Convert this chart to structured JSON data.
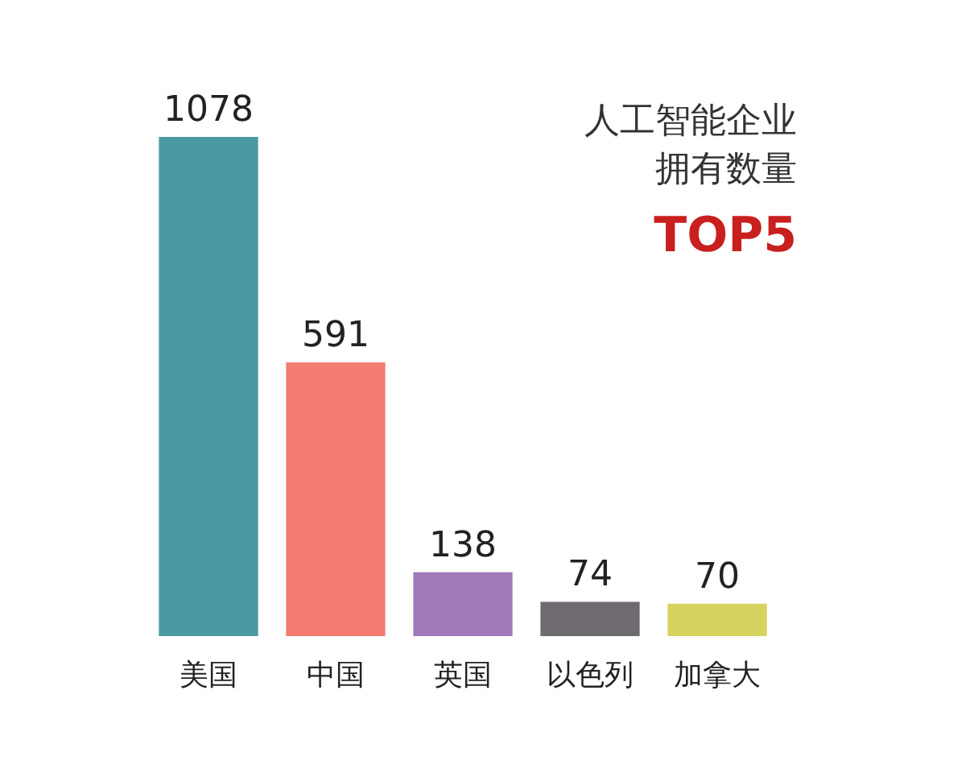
{
  "chart_data": {
    "type": "bar",
    "title": "人工智能企业拥有数量",
    "subtitle": "TOP5",
    "categories": [
      "美国",
      "中国",
      "英国",
      "以色列",
      "加拿大"
    ],
    "values": [
      1078,
      591,
      138,
      74,
      70
    ],
    "colors": [
      "#4a9ba1",
      "#f27b72",
      "#9f7ab8",
      "#6f6a70",
      "#d6d35e"
    ],
    "data_labels": true
  }
}
